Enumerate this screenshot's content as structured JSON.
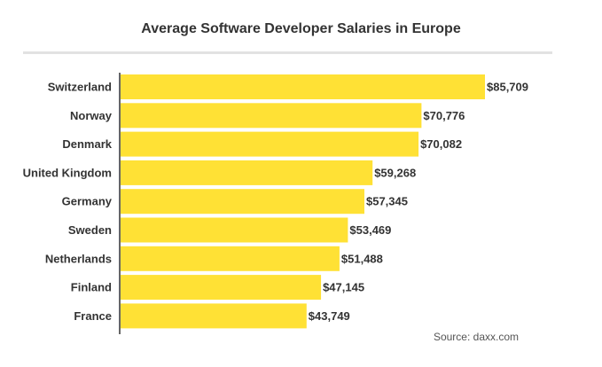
{
  "chart_data": {
    "type": "bar",
    "orientation": "horizontal",
    "title": "Average Software Developer Salaries in Europe",
    "categories": [
      "Switzerland",
      "Norway",
      "Denmark",
      "United Kingdom",
      "Germany",
      "Sweden",
      "Netherlands",
      "Finland",
      "France"
    ],
    "values": [
      85709,
      70776,
      70082,
      59268,
      57345,
      53469,
      51488,
      47145,
      43749
    ],
    "value_labels": [
      "$85,709",
      "$70,776",
      "$70,082",
      "$59,268",
      "$57,345",
      "$53,469",
      "$51,488",
      "$47,145",
      "$43,749"
    ],
    "bar_color": "#ffe135",
    "xlim": [
      0,
      85709
    ],
    "grid": false,
    "source": "Source: daxx.com"
  }
}
